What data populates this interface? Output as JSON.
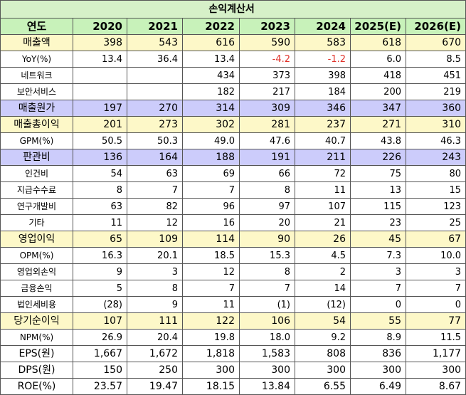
{
  "title": "손익계산서",
  "header": {
    "label": "연도",
    "years": [
      "2020",
      "2021",
      "2022",
      "2023",
      "2024",
      "2025(E)",
      "2026(E)"
    ]
  },
  "rows": [
    {
      "label": "매출액",
      "style": "yellow",
      "values": [
        "398",
        "543",
        "616",
        "590",
        "583",
        "618",
        "670"
      ]
    },
    {
      "label": "YoY(%)",
      "style": "",
      "values": [
        "13.4",
        "36.4",
        "13.4",
        "-4.2",
        "-1.2",
        "6.0",
        "8.5"
      ]
    },
    {
      "label": "네트워크",
      "style": "",
      "values": [
        "",
        "",
        "434",
        "373",
        "398",
        "418",
        "451"
      ]
    },
    {
      "label": "보안서비스",
      "style": "",
      "values": [
        "",
        "",
        "182",
        "217",
        "184",
        "200",
        "219"
      ]
    },
    {
      "label": "매출원가",
      "style": "purple",
      "values": [
        "197",
        "270",
        "314",
        "309",
        "346",
        "347",
        "360"
      ]
    },
    {
      "label": "매출총이익",
      "style": "yellow",
      "values": [
        "201",
        "273",
        "302",
        "281",
        "237",
        "271",
        "310"
      ]
    },
    {
      "label": "GPM(%)",
      "style": "",
      "values": [
        "50.5",
        "50.3",
        "49.0",
        "47.6",
        "40.7",
        "43.8",
        "46.3"
      ]
    },
    {
      "label": "판관비",
      "style": "purple",
      "values": [
        "136",
        "164",
        "188",
        "191",
        "211",
        "226",
        "243"
      ]
    },
    {
      "label": "인건비",
      "style": "",
      "values": [
        "54",
        "63",
        "69",
        "66",
        "72",
        "75",
        "80"
      ]
    },
    {
      "label": "지급수수료",
      "style": "",
      "values": [
        "8",
        "7",
        "7",
        "8",
        "11",
        "13",
        "15"
      ]
    },
    {
      "label": "연구개발비",
      "style": "",
      "values": [
        "63",
        "82",
        "96",
        "97",
        "107",
        "115",
        "123"
      ]
    },
    {
      "label": "기타",
      "style": "",
      "values": [
        "11",
        "12",
        "16",
        "20",
        "21",
        "23",
        "25"
      ]
    },
    {
      "label": "영업이익",
      "style": "yellow",
      "values": [
        "65",
        "109",
        "114",
        "90",
        "26",
        "45",
        "67"
      ]
    },
    {
      "label": "OPM(%)",
      "style": "",
      "values": [
        "16.3",
        "20.1",
        "18.5",
        "15.3",
        "4.5",
        "7.3",
        "10.0"
      ]
    },
    {
      "label": "영업외손익",
      "style": "",
      "values": [
        "9",
        "3",
        "12",
        "8",
        "2",
        "3",
        "3"
      ]
    },
    {
      "label": "금융손익",
      "style": "",
      "values": [
        "5",
        "8",
        "7",
        "7",
        "14",
        "7",
        "7"
      ]
    },
    {
      "label": "법인세비용",
      "style": "",
      "values": [
        "(28)",
        "9",
        "11",
        "(1)",
        "(12)",
        "0",
        "0"
      ]
    },
    {
      "label": "당기순이익",
      "style": "yellow",
      "values": [
        "107",
        "111",
        "122",
        "106",
        "54",
        "55",
        "77"
      ]
    },
    {
      "label": "NPM(%)",
      "style": "",
      "values": [
        "26.9",
        "20.4",
        "19.8",
        "18.0",
        "9.2",
        "8.9",
        "11.5"
      ]
    },
    {
      "label": "EPS(원)",
      "style": "big",
      "values": [
        "1,667",
        "1,672",
        "1,818",
        "1,583",
        "808",
        "836",
        "1,177"
      ]
    },
    {
      "label": "DPS(원)",
      "style": "big",
      "values": [
        "150",
        "250",
        "300",
        "300",
        "300",
        "300",
        "300"
      ]
    },
    {
      "label": "ROE(%)",
      "style": "big",
      "values": [
        "23.57",
        "19.47",
        "18.15",
        "13.84",
        "6.55",
        "6.49",
        "8.67"
      ]
    }
  ],
  "colors": {
    "title_bg": "#d6f0c8",
    "header_bg": "#c8f2ba",
    "highlight_yellow": "#fdf8c8",
    "highlight_purple": "#ccccfb",
    "negative_text": "#e0322a"
  }
}
